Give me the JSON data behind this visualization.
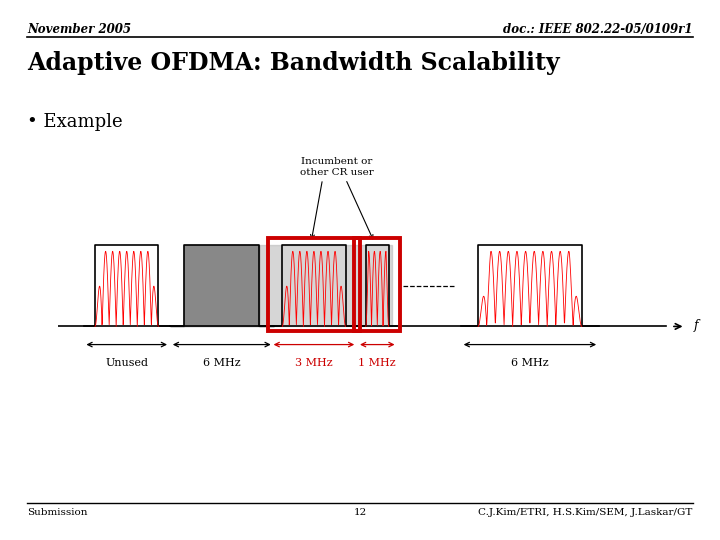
{
  "top_left": "November 2005",
  "top_right": "doc.: IEEE 802.22-05/0109r1",
  "title": "Adaptive OFDMA: Bandwidth Scalability",
  "bullet": "• Example",
  "label_unused": "Unused",
  "label_6mhz_left": "6 MHz",
  "label_3mhz": "3 MHz",
  "label_1mhz": "1 MHz",
  "label_6mhz_right": "6 MHz",
  "label_f": "f",
  "incumbent_label": "Incumbent or\nother CR user",
  "bottom_left": "Submission",
  "bottom_center": "12",
  "bottom_right": "C.J.Kim/ETRI, H.S.Kim/SEM, J.Laskar/GT",
  "bg_color": "#ffffff",
  "red_box_color": "#cc0000",
  "red_wave_color": "#cc0000",
  "gray_fill": "#888888"
}
